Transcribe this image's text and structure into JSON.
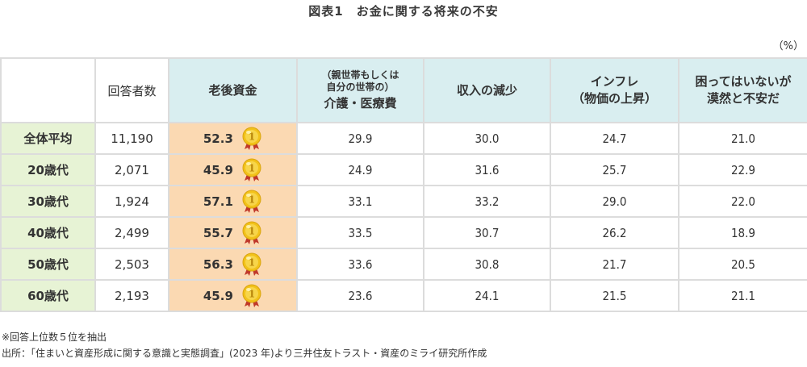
{
  "title": "図表1　お金に関する将来の不安",
  "unit": "（%）",
  "count_header": "回答者数",
  "columns": [
    {
      "id": "retirement_funds",
      "label_main": "老後資金",
      "label_sub": "",
      "highlight": true
    },
    {
      "id": "care_medical",
      "label_sub_line1": "（親世帯もしくは",
      "label_sub_line2": "自分の世帯の）",
      "label_main": "介護・医療費"
    },
    {
      "id": "income_decrease",
      "label_main": "収入の減少"
    },
    {
      "id": "inflation",
      "label_line1": "インフレ",
      "label_line2": "（物価の上昇）"
    },
    {
      "id": "vague_anxiety",
      "label_line1": "困ってはいないが",
      "label_line2": "漠然と不安だ"
    }
  ],
  "rows": [
    {
      "label": "全体平均",
      "count": "11,190",
      "values": [
        "52.3",
        "29.9",
        "30.0",
        "24.7",
        "21.0"
      ],
      "rank1_icon": "gold-medal-1"
    },
    {
      "label": "20歳代",
      "count": "2,071",
      "values": [
        "45.9",
        "24.9",
        "31.6",
        "25.7",
        "22.9"
      ],
      "rank1_icon": "gold-medal-1"
    },
    {
      "label": "30歳代",
      "count": "1,924",
      "values": [
        "57.1",
        "33.1",
        "33.2",
        "29.0",
        "22.0"
      ],
      "rank1_icon": "gold-medal-1"
    },
    {
      "label": "40歳代",
      "count": "2,499",
      "values": [
        "55.7",
        "33.5",
        "30.7",
        "26.2",
        "18.9"
      ],
      "rank1_icon": "gold-medal-1"
    },
    {
      "label": "50歳代",
      "count": "2,503",
      "values": [
        "56.3",
        "33.6",
        "30.8",
        "21.7",
        "20.5"
      ],
      "rank1_icon": "gold-medal-1"
    },
    {
      "label": "60歳代",
      "count": "2,193",
      "values": [
        "45.9",
        "23.6",
        "24.1",
        "21.5",
        "21.1"
      ],
      "rank1_icon": "gold-medal-1"
    }
  ],
  "notes": {
    "note1": "※回答上位数５位を抽出",
    "source": "出所：「住まいと資産形成に関する意識と実態調査」(2023 年)より三井住友トラスト・資産のミライ研究所作成"
  },
  "colors": {
    "header_bg": "#d9eef0",
    "row_label_bg": "#e7f3d5",
    "highlight_col_bg": "#fbd9b2",
    "border": "#dcdcdc",
    "medal_gold": "#f2c21a",
    "medal_ribbon": "#c0392b"
  },
  "chart_data": {
    "type": "table",
    "title": "図表1　お金に関する将来の不安",
    "unit": "%",
    "columns": [
      "回答者数",
      "老後資金",
      "（親世帯もしくは自分の世帯の）介護・医療費",
      "収入の減少",
      "インフレ（物価の上昇）",
      "困ってはいないが漠然と不安だ"
    ],
    "row_labels": [
      "全体平均",
      "20歳代",
      "30歳代",
      "40歳代",
      "50歳代",
      "60歳代"
    ],
    "respondents": [
      11190,
      2071,
      1924,
      2499,
      2503,
      2193
    ],
    "series": [
      {
        "name": "老後資金",
        "values": [
          52.3,
          45.9,
          57.1,
          55.7,
          56.3,
          45.9
        ],
        "rank": 1
      },
      {
        "name": "（親世帯もしくは自分の世帯の）介護・医療費",
        "values": [
          29.9,
          24.9,
          33.1,
          33.5,
          33.6,
          23.6
        ]
      },
      {
        "name": "収入の減少",
        "values": [
          30.0,
          31.6,
          33.2,
          30.7,
          30.8,
          24.1
        ]
      },
      {
        "name": "インフレ（物価の上昇）",
        "values": [
          24.7,
          25.7,
          29.0,
          26.2,
          21.7,
          21.5
        ]
      },
      {
        "name": "困ってはいないが漠然と不安だ",
        "values": [
          21.0,
          22.9,
          22.0,
          18.9,
          20.5,
          21.1
        ]
      }
    ],
    "notes": [
      "※回答上位数５位を抽出",
      "出所：「住まいと資産形成に関する意識と実態調査」(2023 年)より三井住友トラスト・資産のミライ研究所作成"
    ]
  }
}
